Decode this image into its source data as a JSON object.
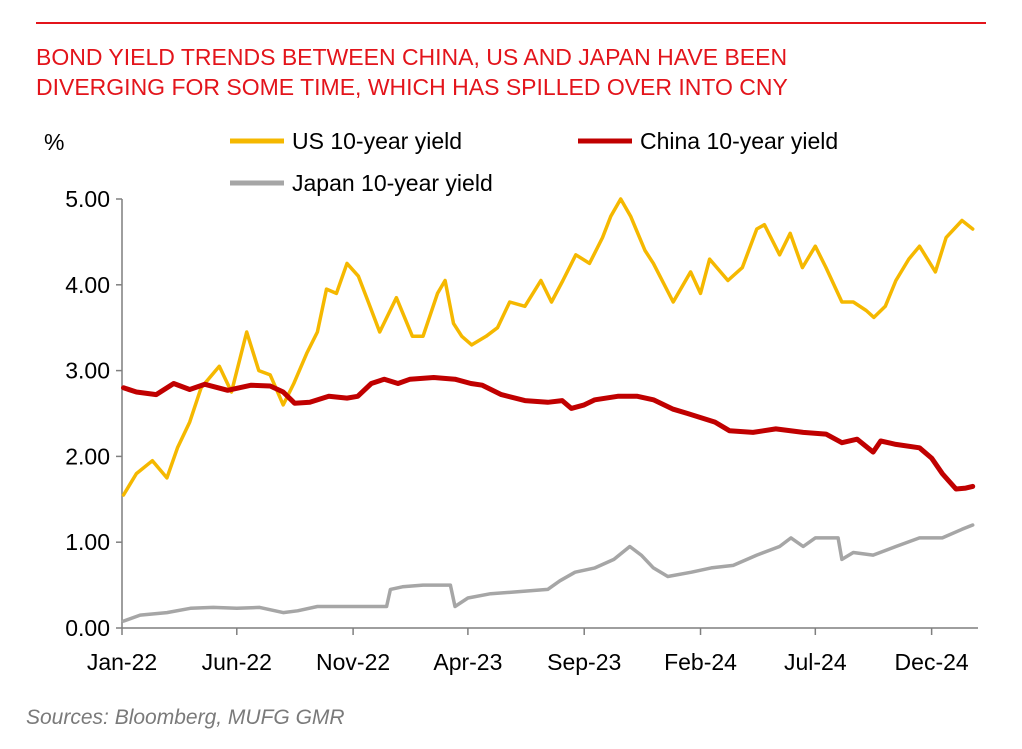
{
  "header": {
    "title_line1": "BOND YIELD TRENDS BETWEEN CHINA, US AND JAPAN HAVE BEEN",
    "title_line2": "DIVERGING FOR SOME TIME, WHICH HAS SPILLED OVER INTO CNY"
  },
  "footer": {
    "source": "Sources:  Bloomberg, MUFG GMR"
  },
  "colors": {
    "accent": "#e3141b",
    "us": "#f5b800",
    "china": "#c00000",
    "japan": "#a6a6a6"
  },
  "chart_data": {
    "type": "line",
    "title": "BOND YIELD TRENDS BETWEEN CHINA, US AND JAPAN HAVE BEEN DIVERGING FOR SOME TIME, WHICH HAS SPILLED OVER INTO CNY",
    "ylabel": "%",
    "xlabel": "",
    "ylim": [
      0,
      5
    ],
    "xlim": [
      "2022-01-01",
      "2025-01-31"
    ],
    "y_ticks": [
      "0.00",
      "1.00",
      "2.00",
      "3.00",
      "4.00",
      "5.00"
    ],
    "x_ticks": [
      {
        "label": "Jan-22",
        "date": "2022-01-01"
      },
      {
        "label": "Jun-22",
        "date": "2022-06-01"
      },
      {
        "label": "Nov-22",
        "date": "2022-11-01"
      },
      {
        "label": "Apr-23",
        "date": "2023-04-01"
      },
      {
        "label": "Sep-23",
        "date": "2023-09-01"
      },
      {
        "label": "Feb-24",
        "date": "2024-02-01"
      },
      {
        "label": "Jul-24",
        "date": "2024-07-01"
      },
      {
        "label": "Dec-24",
        "date": "2024-12-01"
      }
    ],
    "legend_position": "top",
    "grid": false,
    "series": [
      {
        "name": "US 10-year yield",
        "points": [
          [
            "2022-01-03",
            1.55
          ],
          [
            "2022-01-20",
            1.8
          ],
          [
            "2022-02-10",
            1.95
          ],
          [
            "2022-03-01",
            1.75
          ],
          [
            "2022-03-15",
            2.1
          ],
          [
            "2022-03-31",
            2.4
          ],
          [
            "2022-04-15",
            2.8
          ],
          [
            "2022-05-09",
            3.05
          ],
          [
            "2022-05-25",
            2.75
          ],
          [
            "2022-06-14",
            3.45
          ],
          [
            "2022-06-30",
            3.0
          ],
          [
            "2022-07-15",
            2.95
          ],
          [
            "2022-08-01",
            2.6
          ],
          [
            "2022-08-15",
            2.85
          ],
          [
            "2022-09-01",
            3.2
          ],
          [
            "2022-09-15",
            3.45
          ],
          [
            "2022-09-27",
            3.95
          ],
          [
            "2022-10-10",
            3.9
          ],
          [
            "2022-10-24",
            4.25
          ],
          [
            "2022-11-08",
            4.1
          ],
          [
            "2022-11-21",
            3.8
          ],
          [
            "2022-12-06",
            3.45
          ],
          [
            "2022-12-28",
            3.85
          ],
          [
            "2023-01-18",
            3.4
          ],
          [
            "2023-02-01",
            3.4
          ],
          [
            "2023-02-20",
            3.9
          ],
          [
            "2023-03-02",
            4.05
          ],
          [
            "2023-03-13",
            3.55
          ],
          [
            "2023-03-24",
            3.4
          ],
          [
            "2023-04-06",
            3.3
          ],
          [
            "2023-04-25",
            3.4
          ],
          [
            "2023-05-10",
            3.5
          ],
          [
            "2023-05-26",
            3.8
          ],
          [
            "2023-06-15",
            3.75
          ],
          [
            "2023-07-06",
            4.05
          ],
          [
            "2023-07-20",
            3.8
          ],
          [
            "2023-08-04",
            4.05
          ],
          [
            "2023-08-21",
            4.35
          ],
          [
            "2023-09-08",
            4.25
          ],
          [
            "2023-09-25",
            4.55
          ],
          [
            "2023-10-06",
            4.8
          ],
          [
            "2023-10-19",
            5.0
          ],
          [
            "2023-11-01",
            4.8
          ],
          [
            "2023-11-20",
            4.4
          ],
          [
            "2023-12-01",
            4.25
          ],
          [
            "2023-12-27",
            3.8
          ],
          [
            "2024-01-19",
            4.15
          ],
          [
            "2024-02-01",
            3.9
          ],
          [
            "2024-02-13",
            4.3
          ],
          [
            "2024-03-08",
            4.05
          ],
          [
            "2024-03-27",
            4.2
          ],
          [
            "2024-04-15",
            4.65
          ],
          [
            "2024-04-25",
            4.7
          ],
          [
            "2024-05-15",
            4.35
          ],
          [
            "2024-05-29",
            4.6
          ],
          [
            "2024-06-14",
            4.2
          ],
          [
            "2024-07-01",
            4.45
          ],
          [
            "2024-07-15",
            4.2
          ],
          [
            "2024-08-05",
            3.8
          ],
          [
            "2024-08-20",
            3.8
          ],
          [
            "2024-09-06",
            3.7
          ],
          [
            "2024-09-16",
            3.62
          ],
          [
            "2024-10-01",
            3.75
          ],
          [
            "2024-10-15",
            4.05
          ],
          [
            "2024-11-01",
            4.3
          ],
          [
            "2024-11-15",
            4.45
          ],
          [
            "2024-12-06",
            4.15
          ],
          [
            "2024-12-20",
            4.55
          ],
          [
            "2025-01-10",
            4.75
          ],
          [
            "2025-01-24",
            4.65
          ]
        ]
      },
      {
        "name": "China 10-year yield",
        "points": [
          [
            "2022-01-03",
            2.8
          ],
          [
            "2022-01-20",
            2.75
          ],
          [
            "2022-02-15",
            2.72
          ],
          [
            "2022-03-10",
            2.85
          ],
          [
            "2022-03-31",
            2.78
          ],
          [
            "2022-04-20",
            2.84
          ],
          [
            "2022-05-20",
            2.77
          ],
          [
            "2022-06-20",
            2.83
          ],
          [
            "2022-07-15",
            2.82
          ],
          [
            "2022-08-01",
            2.75
          ],
          [
            "2022-08-16",
            2.62
          ],
          [
            "2022-09-05",
            2.63
          ],
          [
            "2022-09-30",
            2.7
          ],
          [
            "2022-10-24",
            2.68
          ],
          [
            "2022-11-07",
            2.7
          ],
          [
            "2022-11-25",
            2.85
          ],
          [
            "2022-12-12",
            2.9
          ],
          [
            "2022-12-30",
            2.85
          ],
          [
            "2023-01-15",
            2.9
          ],
          [
            "2023-02-15",
            2.92
          ],
          [
            "2023-03-15",
            2.9
          ],
          [
            "2023-04-05",
            2.85
          ],
          [
            "2023-04-20",
            2.83
          ],
          [
            "2023-05-15",
            2.72
          ],
          [
            "2023-06-15",
            2.65
          ],
          [
            "2023-07-15",
            2.63
          ],
          [
            "2023-08-03",
            2.65
          ],
          [
            "2023-08-15",
            2.56
          ],
          [
            "2023-09-01",
            2.6
          ],
          [
            "2023-09-15",
            2.66
          ],
          [
            "2023-10-15",
            2.7
          ],
          [
            "2023-11-10",
            2.7
          ],
          [
            "2023-12-01",
            2.66
          ],
          [
            "2023-12-27",
            2.55
          ],
          [
            "2024-01-15",
            2.5
          ],
          [
            "2024-02-20",
            2.4
          ],
          [
            "2024-03-10",
            2.3
          ],
          [
            "2024-04-10",
            2.28
          ],
          [
            "2024-05-10",
            2.32
          ],
          [
            "2024-06-15",
            2.28
          ],
          [
            "2024-07-15",
            2.26
          ],
          [
            "2024-08-05",
            2.16
          ],
          [
            "2024-08-25",
            2.2
          ],
          [
            "2024-09-15",
            2.05
          ],
          [
            "2024-09-25",
            2.18
          ],
          [
            "2024-10-15",
            2.14
          ],
          [
            "2024-11-15",
            2.1
          ],
          [
            "2024-12-01",
            1.98
          ],
          [
            "2024-12-15",
            1.8
          ],
          [
            "2025-01-02",
            1.62
          ],
          [
            "2025-01-15",
            1.63
          ],
          [
            "2025-01-24",
            1.65
          ]
        ]
      },
      {
        "name": "Japan 10-year yield",
        "points": [
          [
            "2022-01-03",
            0.08
          ],
          [
            "2022-01-25",
            0.15
          ],
          [
            "2022-03-01",
            0.18
          ],
          [
            "2022-04-01",
            0.23
          ],
          [
            "2022-05-01",
            0.24
          ],
          [
            "2022-06-01",
            0.23
          ],
          [
            "2022-07-01",
            0.24
          ],
          [
            "2022-08-01",
            0.18
          ],
          [
            "2022-08-20",
            0.2
          ],
          [
            "2022-09-15",
            0.25
          ],
          [
            "2022-10-15",
            0.25
          ],
          [
            "2022-11-15",
            0.25
          ],
          [
            "2022-12-15",
            0.25
          ],
          [
            "2022-12-20",
            0.45
          ],
          [
            "2023-01-05",
            0.48
          ],
          [
            "2023-02-01",
            0.5
          ],
          [
            "2023-03-01",
            0.5
          ],
          [
            "2023-03-09",
            0.5
          ],
          [
            "2023-03-15",
            0.25
          ],
          [
            "2023-04-01",
            0.35
          ],
          [
            "2023-05-01",
            0.4
          ],
          [
            "2023-06-01",
            0.42
          ],
          [
            "2023-07-15",
            0.45
          ],
          [
            "2023-07-31",
            0.55
          ],
          [
            "2023-08-20",
            0.65
          ],
          [
            "2023-09-15",
            0.7
          ],
          [
            "2023-10-10",
            0.8
          ],
          [
            "2023-10-31",
            0.95
          ],
          [
            "2023-11-15",
            0.85
          ],
          [
            "2023-12-01",
            0.7
          ],
          [
            "2023-12-20",
            0.6
          ],
          [
            "2024-01-20",
            0.65
          ],
          [
            "2024-02-15",
            0.7
          ],
          [
            "2024-03-15",
            0.73
          ],
          [
            "2024-04-15",
            0.85
          ],
          [
            "2024-05-15",
            0.95
          ],
          [
            "2024-05-30",
            1.05
          ],
          [
            "2024-06-15",
            0.95
          ],
          [
            "2024-07-01",
            1.05
          ],
          [
            "2024-07-31",
            1.05
          ],
          [
            "2024-08-05",
            0.8
          ],
          [
            "2024-08-20",
            0.88
          ],
          [
            "2024-09-15",
            0.85
          ],
          [
            "2024-10-15",
            0.95
          ],
          [
            "2024-11-15",
            1.05
          ],
          [
            "2024-12-15",
            1.05
          ],
          [
            "2025-01-10",
            1.15
          ],
          [
            "2025-01-24",
            1.2
          ]
        ]
      }
    ]
  }
}
